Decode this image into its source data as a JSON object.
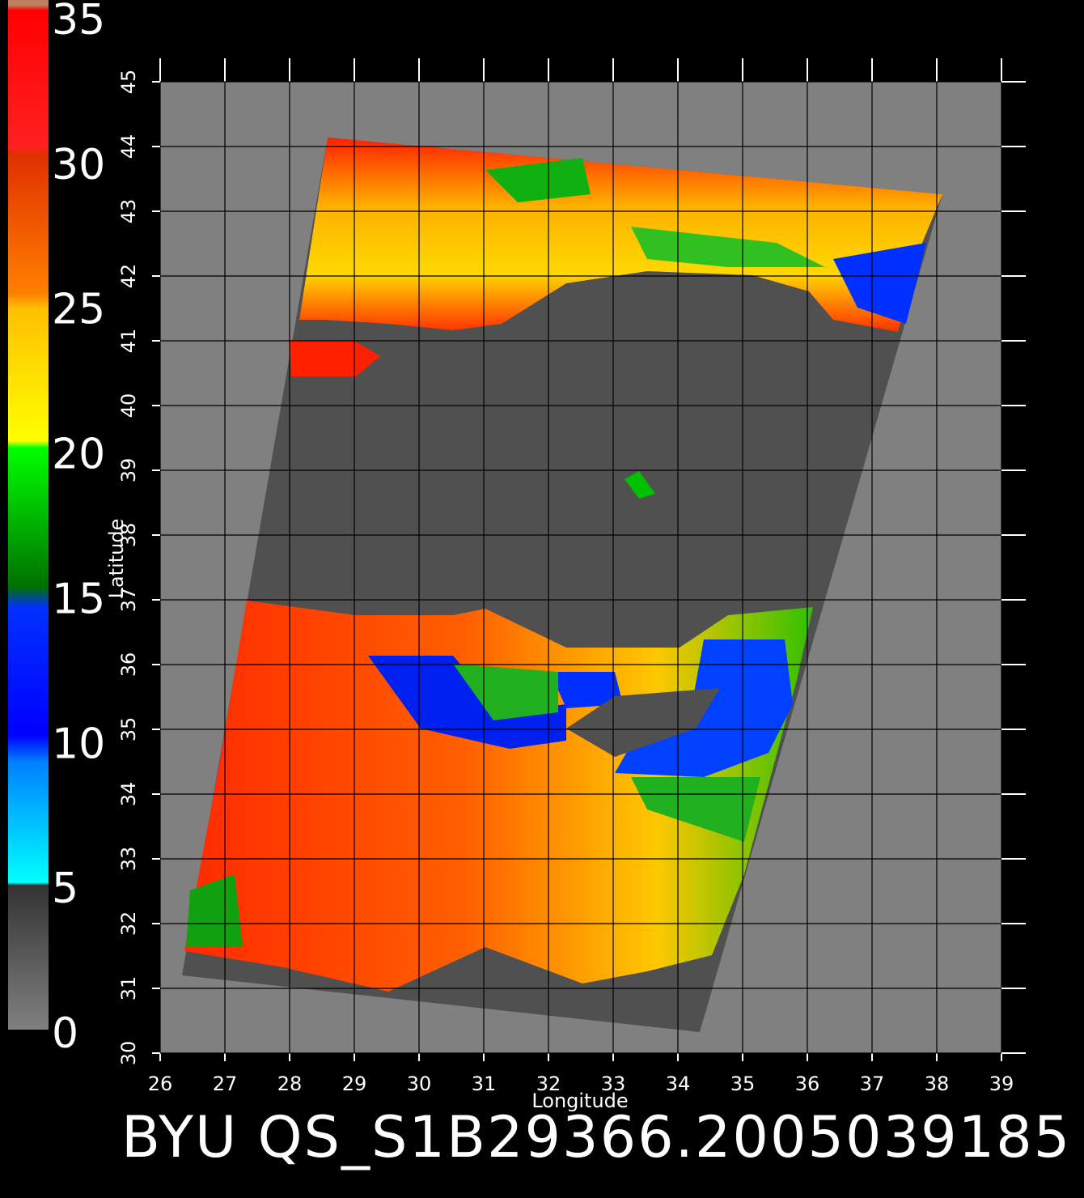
{
  "map": {
    "colorbar": {
      "lim": [
        0,
        35
      ],
      "ticks": [
        0,
        5,
        10,
        15,
        20,
        25,
        30,
        35
      ]
    },
    "x_axis": {
      "label": "Longitude",
      "lim": [
        26,
        39
      ],
      "ticks": [
        26,
        27,
        28,
        29,
        30,
        31,
        32,
        33,
        34,
        35,
        36,
        37,
        38,
        39
      ]
    },
    "y_axis": {
      "label": "Latitude",
      "lim": [
        30,
        45
      ],
      "ticks": [
        30,
        31,
        32,
        33,
        34,
        35,
        36,
        37,
        38,
        39,
        40,
        41,
        42,
        43,
        44,
        45
      ]
    },
    "caption": "BYU QS_S1B29366.2005039185"
  }
}
